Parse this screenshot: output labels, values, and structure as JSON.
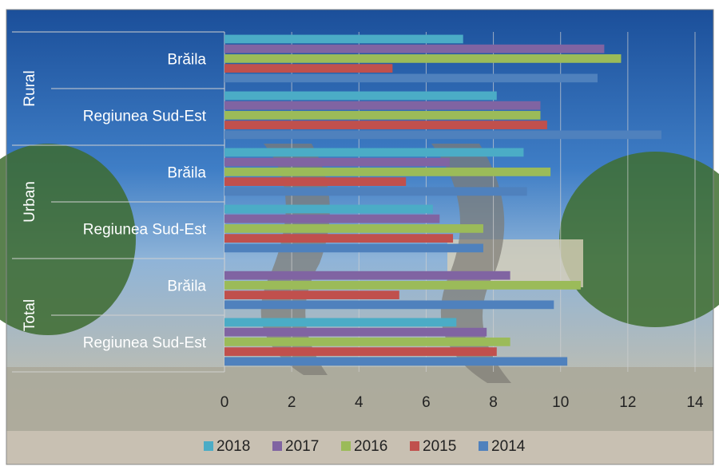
{
  "chart_data": {
    "type": "grouped-hbar",
    "groups": [
      {
        "name": "Rural",
        "categories": [
          "Brăila",
          "Regiunea Sud-Est"
        ]
      },
      {
        "name": "Urban",
        "categories": [
          "Brăila",
          "Regiunea Sud-Est"
        ]
      },
      {
        "name": "Total",
        "categories": [
          "Brăila",
          "Regiunea Sud-Est"
        ]
      }
    ],
    "series": [
      {
        "name": "2018",
        "color": "#4bacc6",
        "values": [
          7.1,
          8.1,
          8.9,
          6.2,
          null,
          6.9
        ]
      },
      {
        "name": "2017",
        "color": "#8064a2",
        "values": [
          11.3,
          9.4,
          6.7,
          6.4,
          8.5,
          7.8
        ]
      },
      {
        "name": "2016",
        "color": "#9bbb59",
        "values": [
          11.8,
          9.4,
          9.7,
          7.7,
          10.6,
          8.5
        ]
      },
      {
        "name": "2015",
        "color": "#c0504d",
        "values": [
          5.0,
          9.6,
          5.4,
          6.8,
          5.2,
          8.1
        ]
      },
      {
        "name": "2014",
        "color": "#4f81bd",
        "values": [
          11.1,
          13.0,
          9.0,
          7.7,
          9.8,
          10.2
        ]
      }
    ],
    "xlim": [
      0,
      14
    ],
    "xticks": [
      0,
      2,
      4,
      6,
      8,
      10,
      12,
      14
    ],
    "grid": true,
    "legend": "bottom"
  }
}
